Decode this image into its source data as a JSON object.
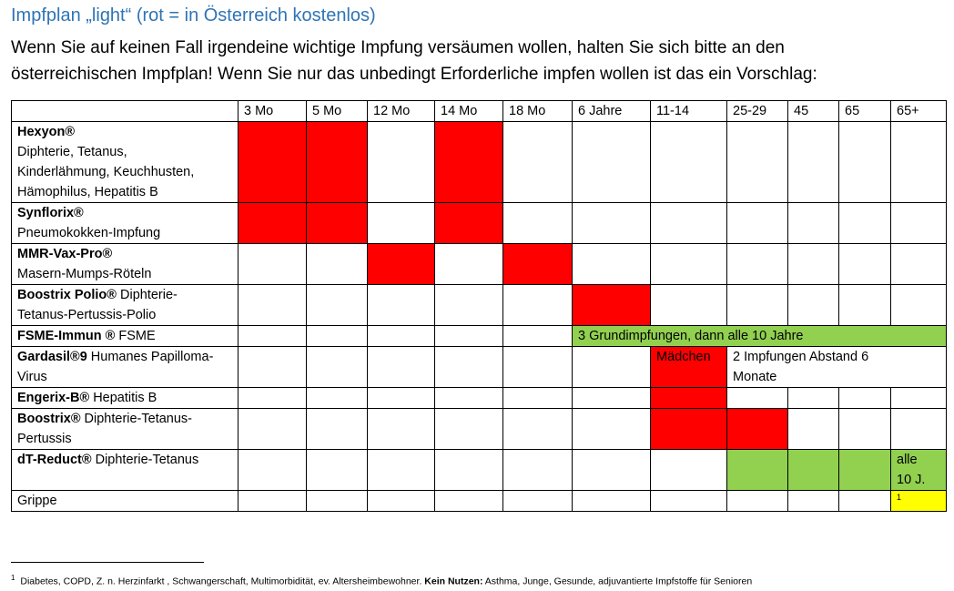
{
  "title": "Impfplan „light“  (rot = in Österreich kostenlos)",
  "intro": [
    "Wenn Sie auf keinen Fall irgendeine wichtige Impfung versäumen wollen, halten Sie sich bitte an den",
    "österreichischen Impfplan! Wenn Sie nur das unbedingt Erforderliche impfen wollen ist das ein Vorschlag:"
  ],
  "table": {
    "columns": [
      "",
      "3 Mo",
      "5 Mo",
      "12 Mo",
      "14 Mo",
      "18 Mo",
      "6 Jahre",
      "11-14",
      "25-29",
      "45",
      "65",
      "65+"
    ],
    "rows": [
      {
        "name": "Hexyon®",
        "desc1": "Diphterie, Tetanus,",
        "desc2": "Kinderlähmung, Keuchhusten,",
        "desc3": "Hämophilus, Hepatitis B"
      },
      {
        "name": "Synflorix®",
        "desc1": "Pneumokokken-Impfung"
      },
      {
        "name": "MMR-Vax-Pro®",
        "desc1": "Masern-Mumps-Röteln"
      },
      {
        "name": "Boostrix Polio®",
        "desc0": " Diphterie-",
        "desc1": "Tetanus-Pertussis-Polio"
      },
      {
        "name": "FSME-Immun ®",
        "desc0": " FSME",
        "note": "3 Grundimpfungen, dann alle 10 Jahre"
      },
      {
        "name": "Gardasil®9",
        "desc0": " Humanes Papilloma-",
        "desc1": "Virus",
        "cell_label": "Mädchen",
        "note1": "2 Impfungen Abstand 6",
        "note2": "Monate"
      },
      {
        "name": "Engerix-B®",
        "desc0": " Hepatitis B"
      },
      {
        "name": "Boostrix®",
        "desc0": " Diphterie-Tetanus-",
        "desc1": "Pertussis"
      },
      {
        "name": "dT-Reduct®",
        "desc0": " Diphterie-Tetanus",
        "note1": "alle",
        "note2": "10 J."
      },
      {
        "desc0": "Grippe",
        "footnote_mark": "1"
      }
    ]
  },
  "colors": {
    "title": "#2e74b5",
    "free_red": "#ff0000",
    "green": "#92d050",
    "yellow": "#ffff00"
  },
  "footnote": {
    "mark": "1",
    "text1": " Diabetes, COPD, Z. n. Herzinfarkt , Schwangerschaft, Multimorbidität, ev. Altersheimbewohner. ",
    "bold": "Kein Nutzen:",
    "text2": " Asthma, Junge, Gesunde, adjuvantierte Impfstoffe für Senioren"
  }
}
